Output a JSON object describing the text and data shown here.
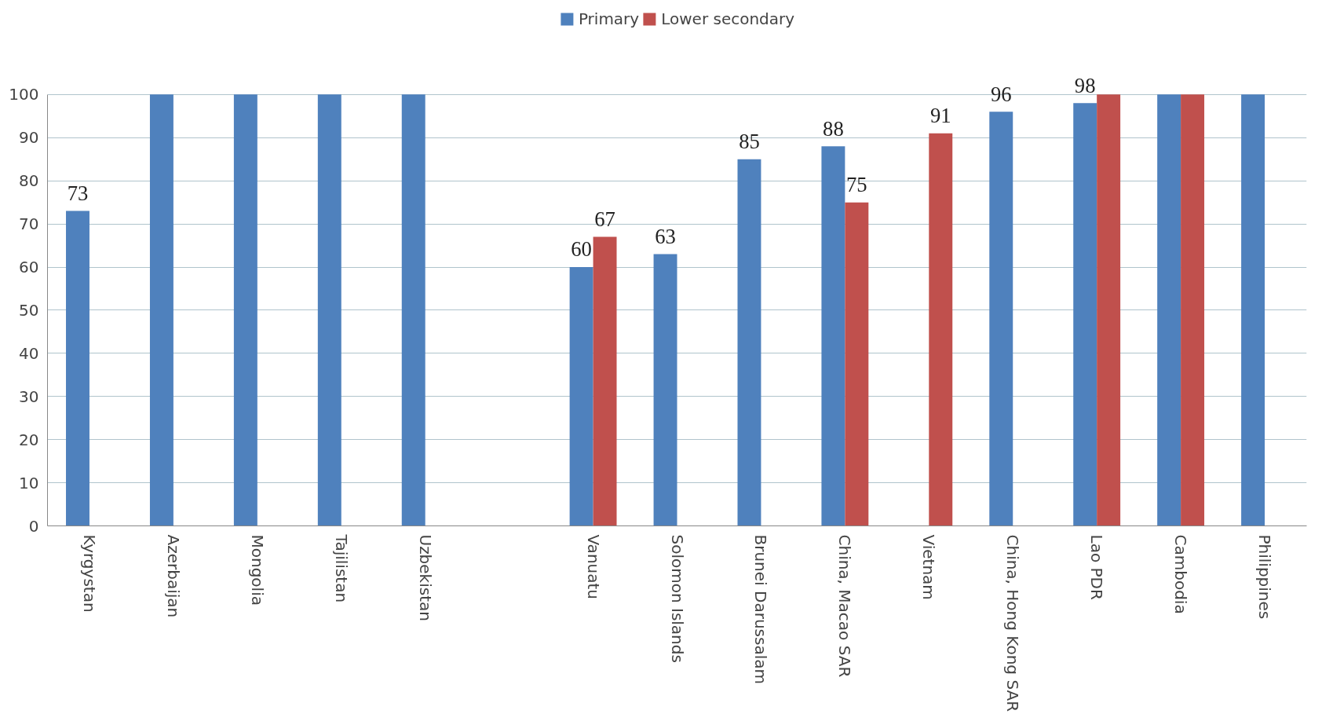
{
  "chart_data": {
    "type": "bar",
    "categories": [
      "Kyrgystan",
      "Azerbaijan",
      "Mongolia",
      "Tajilistan",
      "Uzbekistan",
      null,
      "Vanuatu",
      "Solomon Islands",
      "Brunei Darussalam",
      "China, Macao SAR",
      "Vietnam",
      "China, Hong Kong SAR",
      "Lao PDR",
      "Cambodia",
      "Philippines"
    ],
    "series": [
      {
        "name": "Primary",
        "color": "#4f81bd",
        "values": [
          73,
          100,
          100,
          100,
          100,
          null,
          60,
          63,
          85,
          88,
          null,
          96,
          98,
          100,
          100
        ],
        "value_labels": [
          "73",
          null,
          null,
          null,
          null,
          null,
          "60",
          "63",
          "85",
          "88",
          null,
          "96",
          "98",
          null,
          null
        ]
      },
      {
        "name": "Lower secondary",
        "color": "#c0504d",
        "values": [
          null,
          null,
          null,
          null,
          null,
          null,
          67,
          null,
          null,
          75,
          91,
          null,
          100,
          100,
          null
        ],
        "value_labels": [
          null,
          null,
          null,
          null,
          null,
          null,
          "67",
          null,
          null,
          "75",
          "91",
          null,
          null,
          null,
          null
        ]
      }
    ],
    "ylim": [
      0,
      100
    ],
    "yticks": [
      0,
      10,
      20,
      30,
      40,
      50,
      60,
      70,
      80,
      90,
      100
    ],
    "grid": "y",
    "legend": "top"
  }
}
